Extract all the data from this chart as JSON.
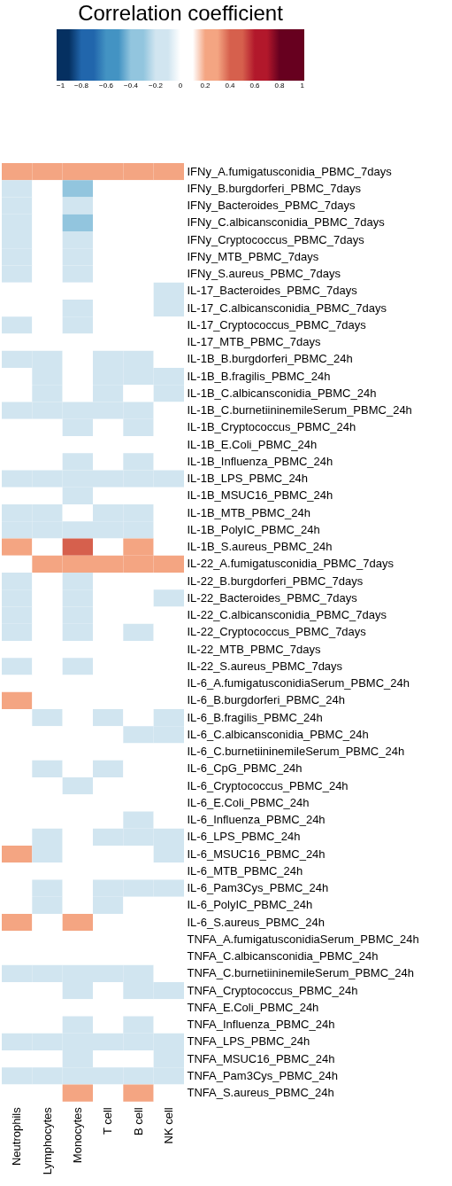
{
  "chart_data": {
    "type": "heatmap",
    "clabel": "Correlation coefficient",
    "categories": [
      "Neutrophils",
      "Lymphocytes",
      "Monocytes",
      "T cell",
      "B cell",
      "NK cell"
    ],
    "y_categories": [
      "IFNy_A.fumigatusconidia_PBMC_7days",
      "IFNy_B.burgdorferi_PBMC_7days",
      "IFNy_Bacteroides_PBMC_7days",
      "IFNy_C.albicansconidia_PBMC_7days",
      "IFNy_Cryptococcus_PBMC_7days",
      "IFNy_MTB_PBMC_7days",
      "IFNy_S.aureus_PBMC_7days",
      "IL-17_Bacteroides_PBMC_7days",
      "IL-17_C.albicansconidia_PBMC_7days",
      "IL-17_Cryptococcus_PBMC_7days",
      "IL-17_MTB_PBMC_7days",
      "IL-1B_B.burgdorferi_PBMC_24h",
      "IL-1B_B.fragilis_PBMC_24h",
      "IL-1B_C.albicansconidia_PBMC_24h",
      "IL-1B_C.burnetiininemileSerum_PBMC_24h",
      "IL-1B_Cryptococcus_PBMC_24h",
      "IL-1B_E.Coli_PBMC_24h",
      "IL-1B_Influenza_PBMC_24h",
      "IL-1B_LPS_PBMC_24h",
      "IL-1B_MSUC16_PBMC_24h",
      "IL-1B_MTB_PBMC_24h",
      "IL-1B_PolyIC_PBMC_24h",
      "IL-1B_S.aureus_PBMC_24h",
      "IL-22_A.fumigatusconidia_PBMC_7days",
      "IL-22_B.burgdorferi_PBMC_7days",
      "IL-22_Bacteroides_PBMC_7days",
      "IL-22_C.albicansconidia_PBMC_7days",
      "IL-22_Cryptococcus_PBMC_7days",
      "IL-22_MTB_PBMC_7days",
      "IL-22_S.aureus_PBMC_7days",
      "IL-6_A.fumigatusconidiaSerum_PBMC_24h",
      "IL-6_B.burgdorferi_PBMC_24h",
      "IL-6_B.fragilis_PBMC_24h",
      "IL-6_C.albicansconidia_PBMC_24h",
      "IL-6_C.burnetiininemileSerum_PBMC_24h",
      "IL-6_CpG_PBMC_24h",
      "IL-6_Cryptococcus_PBMC_24h",
      "IL-6_E.Coli_PBMC_24h",
      "IL-6_Influenza_PBMC_24h",
      "IL-6_LPS_PBMC_24h",
      "IL-6_MSUC16_PBMC_24h",
      "IL-6_MTB_PBMC_24h",
      "IL-6_Pam3Cys_PBMC_24h",
      "IL-6_PolyIC_PBMC_24h",
      "IL-6_S.aureus_PBMC_24h",
      "TNFA_A.fumigatusconidiaSerum_PBMC_24h",
      "TNFA_C.albicansconidia_PBMC_24h",
      "TNFA_C.burnetiininemileSerum_PBMC_24h",
      "TNFA_Cryptococcus_PBMC_24h",
      "TNFA_E.Coli_PBMC_24h",
      "TNFA_Influenza_PBMC_24h",
      "TNFA_LPS_PBMC_24h",
      "TNFA_MSUC16_PBMC_24h",
      "TNFA_Pam3Cys_PBMC_24h",
      "TNFA_S.aureus_PBMC_24h"
    ],
    "cells": [
      [
        0.3,
        0.3,
        0.3,
        0.3,
        0.3,
        0.3
      ],
      [
        -0.1,
        0.1,
        -0.3,
        0.1,
        0.1,
        0.1
      ],
      [
        -0.1,
        0.1,
        -0.1,
        0.1,
        0.1,
        0.1
      ],
      [
        -0.1,
        0.1,
        -0.3,
        0.1,
        0.1,
        0.1
      ],
      [
        -0.1,
        0.1,
        -0.1,
        0.1,
        0.1,
        0.1
      ],
      [
        -0.1,
        0.1,
        -0.1,
        0.1,
        0.1,
        0.1
      ],
      [
        -0.1,
        0.1,
        -0.1,
        0.1,
        0.1,
        0.1
      ],
      [
        0.1,
        0.1,
        0.1,
        0.1,
        0.1,
        -0.1
      ],
      [
        0.1,
        0.1,
        -0.1,
        0.1,
        0.1,
        -0.1
      ],
      [
        -0.1,
        0.1,
        -0.1,
        0.1,
        0.1,
        0.1
      ],
      [
        0.1,
        0.1,
        0.1,
        0.1,
        0.1,
        0.1
      ],
      [
        -0.1,
        -0.1,
        0.1,
        -0.1,
        -0.1,
        0.1
      ],
      [
        0.1,
        -0.1,
        0.1,
        -0.1,
        -0.1,
        -0.1
      ],
      [
        0.1,
        -0.1,
        0.1,
        -0.1,
        0.1,
        -0.1
      ],
      [
        -0.1,
        -0.1,
        -0.1,
        -0.1,
        -0.1,
        0.1
      ],
      [
        0.1,
        0.1,
        -0.1,
        0.1,
        -0.1,
        0.1
      ],
      [
        0.1,
        0.1,
        0.1,
        0.1,
        0.1,
        0.1
      ],
      [
        0.1,
        0.1,
        -0.1,
        0.1,
        -0.1,
        0.1
      ],
      [
        -0.1,
        -0.1,
        -0.1,
        -0.1,
        -0.1,
        -0.1
      ],
      [
        0.1,
        0.1,
        -0.1,
        0.1,
        0.1,
        0.1
      ],
      [
        -0.1,
        -0.1,
        0.1,
        -0.1,
        -0.1,
        0.1
      ],
      [
        -0.1,
        -0.1,
        -0.1,
        -0.1,
        -0.1,
        0.1
      ],
      [
        0.3,
        0.1,
        0.5,
        0.1,
        0.3,
        0.1
      ],
      [
        0.1,
        0.3,
        0.3,
        0.3,
        0.3,
        0.3
      ],
      [
        -0.1,
        0.1,
        -0.1,
        0.1,
        0.1,
        0.1
      ],
      [
        -0.1,
        0.1,
        -0.1,
        0.1,
        0.1,
        -0.1
      ],
      [
        -0.1,
        0.1,
        -0.1,
        0.1,
        0.1,
        0.1
      ],
      [
        -0.1,
        0.1,
        -0.1,
        0.1,
        -0.1,
        0.1
      ],
      [
        0.1,
        0.1,
        0.1,
        0.1,
        0.1,
        0.1
      ],
      [
        -0.1,
        0.1,
        -0.1,
        0.1,
        0.1,
        0.1
      ],
      [
        0.1,
        0.1,
        0.1,
        0.1,
        0.1,
        0.1
      ],
      [
        0.3,
        0.1,
        0.1,
        0.1,
        0.1,
        0.1
      ],
      [
        0.1,
        -0.1,
        0.1,
        -0.1,
        0.1,
        -0.1
      ],
      [
        0.1,
        0.1,
        0.1,
        0.1,
        -0.1,
        -0.1
      ],
      [
        0.1,
        0.1,
        0.1,
        0.1,
        0.1,
        0.1
      ],
      [
        0.1,
        -0.1,
        0.1,
        -0.1,
        0.1,
        0.1
      ],
      [
        0.1,
        0.1,
        -0.1,
        0.1,
        0.1,
        0.1
      ],
      [
        0.1,
        0.1,
        0.1,
        0.1,
        0.1,
        0.1
      ],
      [
        0.1,
        0.1,
        0.1,
        0.1,
        -0.1,
        0.1
      ],
      [
        0.1,
        -0.1,
        0.1,
        -0.1,
        -0.1,
        -0.1
      ],
      [
        0.3,
        -0.1,
        0.1,
        0.1,
        0.1,
        -0.1
      ],
      [
        0.1,
        0.1,
        0.1,
        0.1,
        0.1,
        0.1
      ],
      [
        0.1,
        -0.1,
        0.1,
        -0.1,
        -0.1,
        -0.1
      ],
      [
        0.1,
        -0.1,
        0.1,
        -0.1,
        0.1,
        0.1
      ],
      [
        0.3,
        0.1,
        0.3,
        0.1,
        0.1,
        0.1
      ],
      [
        0.1,
        0.1,
        0.1,
        0.1,
        0.1,
        0.1
      ],
      [
        0.1,
        0.1,
        0.1,
        0.1,
        0.1,
        0.1
      ],
      [
        -0.1,
        -0.1,
        -0.1,
        -0.1,
        -0.1,
        0.1
      ],
      [
        0.1,
        0.1,
        -0.1,
        0.1,
        -0.1,
        -0.1
      ],
      [
        0.1,
        0.1,
        0.1,
        0.1,
        0.1,
        0.1
      ],
      [
        0.1,
        0.1,
        -0.1,
        0.1,
        -0.1,
        0.1
      ],
      [
        -0.1,
        -0.1,
        -0.1,
        -0.1,
        -0.1,
        -0.1
      ],
      [
        0.1,
        0.1,
        -0.1,
        0.1,
        0.1,
        -0.1
      ],
      [
        -0.1,
        -0.1,
        -0.1,
        -0.1,
        -0.1,
        -0.1
      ],
      [
        0.1,
        0.1,
        0.3,
        0.1,
        0.3,
        0.1
      ]
    ],
    "clim": [
      -1,
      1
    ],
    "cticks": [
      -1,
      -0.8,
      -0.6,
      -0.4,
      -0.2,
      0,
      0.2,
      0.4,
      0.6,
      0.8,
      1
    ],
    "colors": [
      "#053061",
      "#2166ac",
      "#4393c3",
      "#92c5de",
      "#d1e5f0",
      "#ffffff",
      "#f4a582",
      "#d6604d",
      "#b2182b",
      "#67001f"
    ],
    "grid": false
  }
}
